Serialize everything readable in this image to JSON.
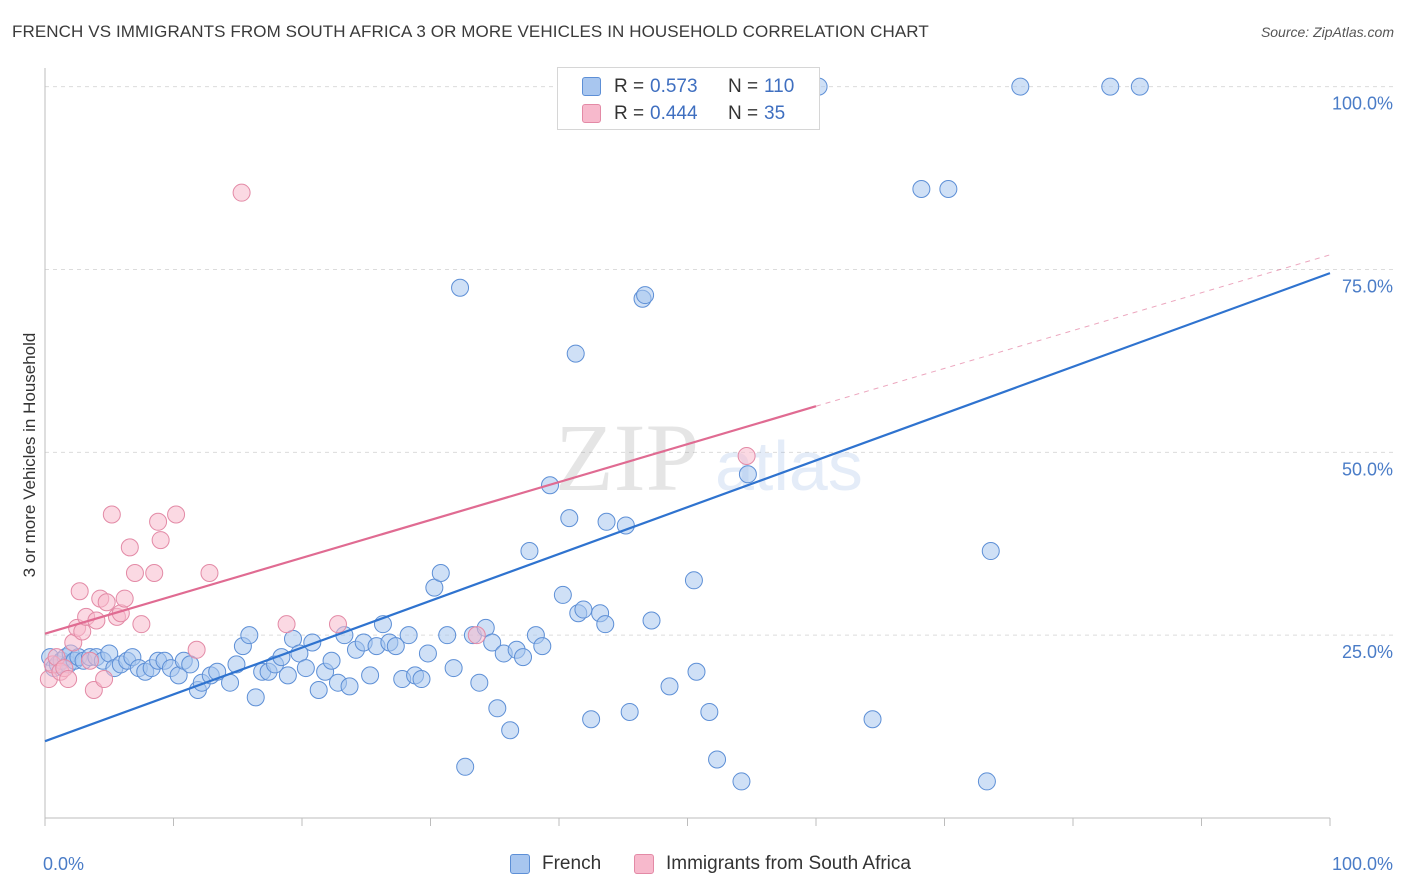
{
  "title": "FRENCH VS IMMIGRANTS FROM SOUTH AFRICA 3 OR MORE VEHICLES IN HOUSEHOLD CORRELATION CHART",
  "source": "Source: ZipAtlas.com",
  "watermark": {
    "zip": "ZIP",
    "atlas": "atlas"
  },
  "legend_top": {
    "rows": [
      {
        "r_label": "R =",
        "r_value": "0.573",
        "n_label": "N =",
        "n_value": "110"
      },
      {
        "r_label": "R =",
        "r_value": "0.444",
        "n_label": "N =",
        "n_value": "35"
      }
    ]
  },
  "legend_bottom": {
    "items": [
      "French",
      "Immigrants from South Africa"
    ]
  },
  "colors": {
    "french_fill": "#a8c6ef",
    "french_stroke": "#5d8fd6",
    "french_line": "#2f73cf",
    "sa_fill": "#f7b9cc",
    "sa_stroke": "#e38aa6",
    "sa_line": "#e06b92",
    "tick_text": "#4a7cc7",
    "grid": "#dcdcdc"
  },
  "chart_data": {
    "type": "scatter",
    "title": "FRENCH VS IMMIGRANTS FROM SOUTH AFRICA 3 OR MORE VEHICLES IN HOUSEHOLD CORRELATION CHART",
    "xlabel": "",
    "ylabel": "3 or more Vehicles in Household",
    "xlim": [
      0,
      100
    ],
    "ylim": [
      0,
      102
    ],
    "x_tick_labels": [
      "0.0%",
      "100.0%"
    ],
    "y_ticks": [
      25,
      50,
      75,
      100
    ],
    "y_tick_labels": [
      "25.0%",
      "50.0%",
      "75.0%",
      "100.0%"
    ],
    "grid": "horizontal dashed",
    "legend_placement": "top-center and bottom",
    "series": [
      {
        "name": "French",
        "r": 0.573,
        "n": 110,
        "trend": {
          "x": [
            0,
            100
          ],
          "y": [
            10.5,
            74.5
          ],
          "style": "solid"
        },
        "points": [
          [
            0.4,
            22
          ],
          [
            0.7,
            20.5
          ],
          [
            1.0,
            21
          ],
          [
            1.3,
            21.5
          ],
          [
            1.6,
            22
          ],
          [
            1.8,
            21
          ],
          [
            2.0,
            22.5
          ],
          [
            2.3,
            21.5
          ],
          [
            2.6,
            22
          ],
          [
            3.0,
            21.5
          ],
          [
            3.5,
            22
          ],
          [
            4.0,
            22
          ],
          [
            4.5,
            21.5
          ],
          [
            5.0,
            22.5
          ],
          [
            5.4,
            20.5
          ],
          [
            5.9,
            21
          ],
          [
            6.4,
            21.5
          ],
          [
            6.8,
            22
          ],
          [
            7.3,
            20.5
          ],
          [
            7.8,
            20
          ],
          [
            8.3,
            20.5
          ],
          [
            8.8,
            21.5
          ],
          [
            9.3,
            21.5
          ],
          [
            9.8,
            20.5
          ],
          [
            10.4,
            19.5
          ],
          [
            10.8,
            21.5
          ],
          [
            11.3,
            21
          ],
          [
            11.9,
            17.5
          ],
          [
            12.2,
            18.5
          ],
          [
            12.9,
            19.5
          ],
          [
            13.4,
            20
          ],
          [
            14.4,
            18.5
          ],
          [
            14.9,
            21
          ],
          [
            15.4,
            23.5
          ],
          [
            15.9,
            25
          ],
          [
            16.4,
            16.5
          ],
          [
            16.9,
            20
          ],
          [
            17.4,
            20
          ],
          [
            17.9,
            21
          ],
          [
            18.4,
            22
          ],
          [
            18.9,
            19.5
          ],
          [
            19.3,
            24.5
          ],
          [
            19.8,
            22.5
          ],
          [
            20.3,
            20.5
          ],
          [
            20.8,
            24
          ],
          [
            21.3,
            17.5
          ],
          [
            21.8,
            20
          ],
          [
            22.3,
            21.5
          ],
          [
            22.8,
            18.5
          ],
          [
            23.3,
            25
          ],
          [
            23.7,
            18
          ],
          [
            24.2,
            23
          ],
          [
            24.8,
            24
          ],
          [
            25.3,
            19.5
          ],
          [
            25.8,
            23.5
          ],
          [
            26.3,
            26.5
          ],
          [
            26.8,
            24
          ],
          [
            27.3,
            23.5
          ],
          [
            27.8,
            19
          ],
          [
            28.3,
            25
          ],
          [
            28.8,
            19.5
          ],
          [
            29.3,
            19
          ],
          [
            29.8,
            22.5
          ],
          [
            30.3,
            31.5
          ],
          [
            30.8,
            33.5
          ],
          [
            31.3,
            25
          ],
          [
            31.8,
            20.5
          ],
          [
            32.3,
            72.5
          ],
          [
            32.7,
            7
          ],
          [
            33.3,
            25
          ],
          [
            33.8,
            18.5
          ],
          [
            34.3,
            26
          ],
          [
            34.8,
            24
          ],
          [
            35.2,
            15
          ],
          [
            35.7,
            22.5
          ],
          [
            36.2,
            12
          ],
          [
            36.7,
            23
          ],
          [
            37.2,
            22
          ],
          [
            37.7,
            36.5
          ],
          [
            38.2,
            25
          ],
          [
            38.7,
            23.5
          ],
          [
            39.3,
            45.5
          ],
          [
            40.3,
            30.5
          ],
          [
            40.8,
            41
          ],
          [
            41.3,
            63.5
          ],
          [
            41.5,
            28
          ],
          [
            41.9,
            28.5
          ],
          [
            42.5,
            13.5
          ],
          [
            43.2,
            28
          ],
          [
            43.7,
            40.5
          ],
          [
            43.6,
            26.5
          ],
          [
            45.2,
            40
          ],
          [
            45.5,
            14.5
          ],
          [
            46.5,
            71
          ],
          [
            46.7,
            71.5
          ],
          [
            47.2,
            27
          ],
          [
            48.6,
            18
          ],
          [
            50.7,
            20
          ],
          [
            50.5,
            32.5
          ],
          [
            51.7,
            14.5
          ],
          [
            52.3,
            8
          ],
          [
            54.2,
            5
          ],
          [
            54.7,
            47
          ],
          [
            60.2,
            100
          ],
          [
            64.4,
            13.5
          ],
          [
            68.2,
            86
          ],
          [
            70.3,
            86
          ],
          [
            73.3,
            5
          ],
          [
            73.6,
            36.5
          ],
          [
            75.9,
            100
          ],
          [
            82.9,
            100
          ],
          [
            85.2,
            100
          ]
        ]
      },
      {
        "name": "Immigrants from South Africa",
        "r": 0.444,
        "n": 35,
        "trend": {
          "x": [
            0,
            60
          ],
          "y": [
            25.2,
            56.3
          ],
          "style": "solid",
          "extension": {
            "x": [
              60,
              100
            ],
            "y": [
              56.3,
              77
            ],
            "style": "dashed"
          }
        },
        "points": [
          [
            0.3,
            19
          ],
          [
            0.6,
            21
          ],
          [
            0.9,
            22
          ],
          [
            1.2,
            20
          ],
          [
            1.5,
            20.5
          ],
          [
            1.8,
            19
          ],
          [
            2.2,
            24
          ],
          [
            2.5,
            26
          ],
          [
            2.7,
            31
          ],
          [
            2.9,
            25.5
          ],
          [
            3.2,
            27.5
          ],
          [
            3.5,
            21.5
          ],
          [
            3.8,
            17.5
          ],
          [
            4.0,
            27
          ],
          [
            4.3,
            30
          ],
          [
            4.6,
            19
          ],
          [
            4.8,
            29.5
          ],
          [
            5.2,
            41.5
          ],
          [
            5.6,
            27.5
          ],
          [
            5.9,
            28
          ],
          [
            6.2,
            30
          ],
          [
            6.6,
            37
          ],
          [
            7.0,
            33.5
          ],
          [
            7.5,
            26.5
          ],
          [
            8.5,
            33.5
          ],
          [
            8.8,
            40.5
          ],
          [
            9.0,
            38
          ],
          [
            10.2,
            41.5
          ],
          [
            11.8,
            23
          ],
          [
            12.8,
            33.5
          ],
          [
            15.3,
            85.5
          ],
          [
            18.8,
            26.5
          ],
          [
            22.8,
            26.5
          ],
          [
            33.6,
            25
          ],
          [
            54.6,
            49.5
          ]
        ]
      }
    ]
  }
}
